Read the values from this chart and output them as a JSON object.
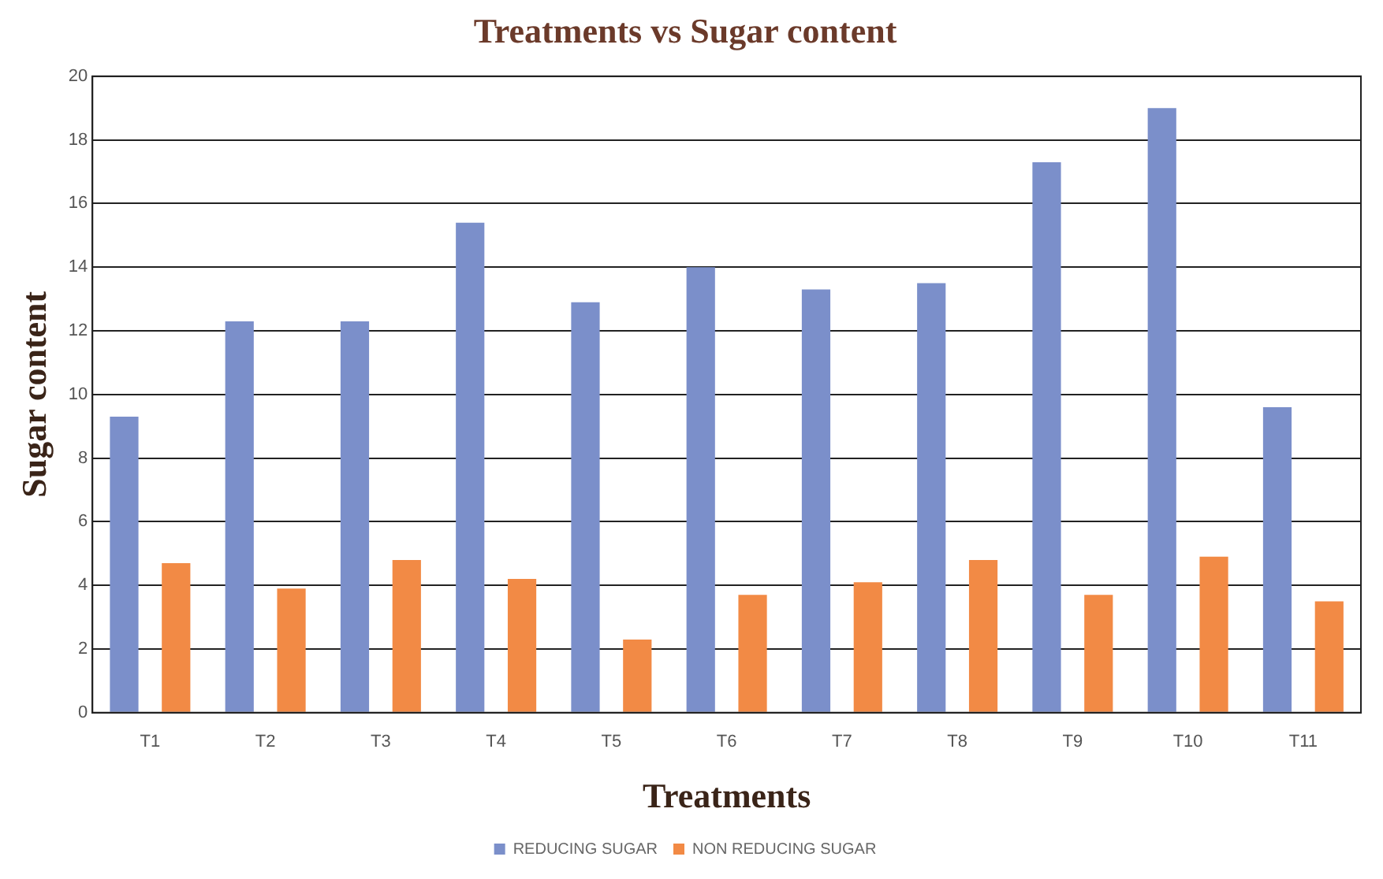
{
  "chart_data": {
    "type": "bar",
    "title": "Treatments vs Sugar content",
    "xlabel": "Treatments",
    "ylabel": "Sugar content",
    "categories": [
      "T1",
      "T2",
      "T3",
      "T4",
      "T5",
      "T6",
      "T7",
      "T8",
      "T9",
      "T10",
      "T11"
    ],
    "series": [
      {
        "name": "REDUCING SUGAR",
        "color": "#7b8fca",
        "values": [
          9.3,
          12.3,
          12.3,
          15.4,
          12.9,
          14.0,
          13.3,
          13.5,
          17.3,
          19.0,
          9.6
        ]
      },
      {
        "name": "NON REDUCING SUGAR",
        "color": "#f28a45",
        "values": [
          4.7,
          3.9,
          4.8,
          4.2,
          2.3,
          3.7,
          4.1,
          4.8,
          3.7,
          4.9,
          3.5
        ]
      }
    ],
    "ylim": [
      0,
      20
    ],
    "yticks": [
      0,
      2,
      4,
      6,
      8,
      10,
      12,
      14,
      16,
      18,
      20
    ],
    "grid": "y",
    "legend": "bottom"
  }
}
